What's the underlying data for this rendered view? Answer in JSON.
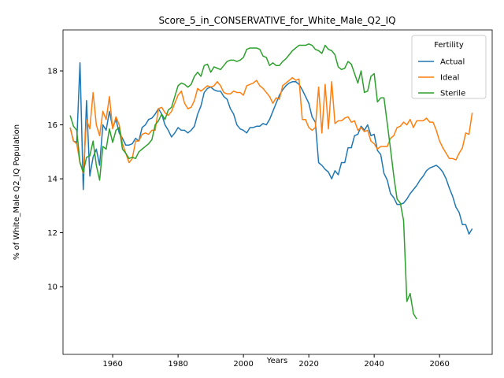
{
  "chart_data": {
    "type": "line",
    "title": "Score_5_in_CONSERVATIVE_for_White_Male_Q2_IQ",
    "x_label": "Years",
    "y_label": "% of White_Male Q2_IQ Population",
    "legend_title": "Fertility",
    "legend_loc": "upper right",
    "x": [
      1947,
      1948,
      1949,
      1950,
      1951,
      1952,
      1953,
      1954,
      1955,
      1956,
      1957,
      1958,
      1959,
      1960,
      1961,
      1962,
      1963,
      1964,
      1965,
      1966,
      1967,
      1968,
      1969,
      1970,
      1971,
      1972,
      1973,
      1974,
      1975,
      1976,
      1977,
      1978,
      1979,
      1980,
      1981,
      1982,
      1983,
      1984,
      1985,
      1986,
      1987,
      1988,
      1989,
      1990,
      1991,
      1992,
      1993,
      1994,
      1995,
      1996,
      1997,
      1998,
      1999,
      2000,
      2001,
      2002,
      2003,
      2004,
      2005,
      2006,
      2007,
      2008,
      2009,
      2010,
      2011,
      2012,
      2013,
      2014,
      2015,
      2016,
      2017,
      2018,
      2019,
      2020,
      2021,
      2022,
      2023,
      2024,
      2025,
      2026,
      2027,
      2028,
      2029,
      2030,
      2031,
      2032,
      2033,
      2034,
      2035,
      2036,
      2037,
      2038,
      2039,
      2040,
      2041,
      2042,
      2043,
      2044,
      2045,
      2046,
      2047,
      2048,
      2049,
      2050,
      2051,
      2052,
      2053,
      2054,
      2055,
      2056,
      2057,
      2058,
      2059,
      2060,
      2061,
      2062,
      2063,
      2064,
      2065,
      2066,
      2067,
      2068,
      2069,
      2070
    ],
    "series": [
      {
        "name": "Actual",
        "color": "#1f77b4",
        "values": [
          15.9,
          15.4,
          15.35,
          18.3,
          13.6,
          16.9,
          14.1,
          14.8,
          15.1,
          14.5,
          16.0,
          15.8,
          16.5,
          15.9,
          16.2,
          15.7,
          15.5,
          15.25,
          15.25,
          15.3,
          15.5,
          15.4,
          15.9,
          16.0,
          16.2,
          16.25,
          16.4,
          16.6,
          16.4,
          16.0,
          15.8,
          15.55,
          15.7,
          15.9,
          15.8,
          15.8,
          15.7,
          15.8,
          15.95,
          16.4,
          16.7,
          17.2,
          17.35,
          17.4,
          17.3,
          17.25,
          17.25,
          17.05,
          16.95,
          16.6,
          16.4,
          16.0,
          15.85,
          15.8,
          15.7,
          15.9,
          15.9,
          15.95,
          15.95,
          16.05,
          16.0,
          16.2,
          16.5,
          16.8,
          17.1,
          17.3,
          17.45,
          17.55,
          17.6,
          17.6,
          17.5,
          17.3,
          17.05,
          16.8,
          16.3,
          16.1,
          14.6,
          14.5,
          14.35,
          14.25,
          14.0,
          14.3,
          14.15,
          14.6,
          14.6,
          15.15,
          15.15,
          15.6,
          15.65,
          15.95,
          15.8,
          16.0,
          15.6,
          15.65,
          15.05,
          14.9,
          14.2,
          13.95,
          13.45,
          13.3,
          13.05,
          13.05,
          13.1,
          13.25,
          13.45,
          13.6,
          13.75,
          13.95,
          14.1,
          14.3,
          14.4,
          14.45,
          14.5,
          14.4,
          14.25,
          14.0,
          13.65,
          13.35,
          12.95,
          12.75,
          12.3,
          12.3,
          11.95,
          12.15
        ]
      },
      {
        "name": "Ideal",
        "color": "#ff7f0e",
        "values": [
          15.9,
          15.4,
          15.3,
          14.6,
          14.2,
          16.2,
          15.85,
          17.2,
          16.0,
          15.6,
          16.5,
          16.2,
          17.05,
          15.85,
          16.3,
          16.0,
          15.3,
          14.95,
          14.6,
          14.75,
          15.4,
          15.4,
          15.65,
          15.7,
          15.65,
          15.8,
          15.8,
          16.6,
          16.65,
          16.45,
          16.35,
          16.5,
          16.8,
          17.1,
          17.25,
          16.8,
          16.6,
          16.65,
          16.9,
          17.35,
          17.25,
          17.35,
          17.45,
          17.4,
          17.45,
          17.6,
          17.45,
          17.2,
          17.15,
          17.15,
          17.25,
          17.2,
          17.2,
          17.1,
          17.45,
          17.5,
          17.55,
          17.65,
          17.45,
          17.35,
          17.2,
          17.05,
          16.8,
          17.0,
          16.95,
          17.45,
          17.55,
          17.65,
          17.75,
          17.65,
          17.7,
          16.2,
          16.2,
          15.9,
          15.8,
          15.9,
          17.4,
          15.7,
          17.5,
          15.85,
          17.6,
          16.05,
          16.15,
          16.15,
          16.25,
          16.3,
          16.1,
          16.15,
          15.8,
          15.9,
          15.75,
          15.8,
          15.4,
          15.3,
          15.1,
          15.2,
          15.2,
          15.2,
          15.5,
          15.6,
          15.9,
          15.95,
          16.1,
          16.0,
          16.2,
          15.9,
          16.15,
          16.15,
          16.15,
          16.25,
          16.1,
          16.1,
          15.8,
          15.4,
          15.15,
          14.95,
          14.75,
          14.75,
          14.7,
          14.95,
          15.15,
          15.7,
          15.65,
          16.45
        ]
      },
      {
        "name": "Sterile",
        "color": "#2ca02c",
        "values": [
          16.35,
          15.95,
          15.8,
          14.6,
          14.25,
          14.8,
          14.85,
          15.4,
          14.5,
          13.95,
          15.2,
          15.1,
          15.85,
          15.35,
          15.8,
          15.9,
          15.1,
          14.95,
          14.75,
          14.8,
          14.75,
          15.0,
          15.1,
          15.2,
          15.3,
          15.45,
          16.0,
          16.15,
          16.4,
          16.2,
          16.55,
          16.65,
          17.05,
          17.45,
          17.55,
          17.5,
          17.4,
          17.5,
          17.8,
          17.95,
          17.8,
          18.2,
          18.25,
          17.95,
          18.15,
          18.1,
          18.05,
          18.2,
          18.35,
          18.4,
          18.4,
          18.35,
          18.4,
          18.5,
          18.8,
          18.85,
          18.85,
          18.85,
          18.8,
          18.55,
          18.5,
          18.2,
          18.3,
          18.2,
          18.2,
          18.35,
          18.45,
          18.6,
          18.75,
          18.85,
          18.95,
          18.95,
          18.95,
          19.0,
          18.95,
          18.8,
          18.75,
          18.65,
          18.95,
          18.8,
          18.75,
          18.6,
          18.15,
          18.05,
          18.1,
          18.35,
          18.25,
          17.9,
          17.55,
          18.0,
          17.2,
          17.25,
          17.8,
          17.9,
          16.85,
          17.0,
          17.0,
          16.05,
          15.1,
          14.1,
          13.25,
          13.1,
          12.45,
          9.45,
          9.75,
          9.0,
          8.8,
          null,
          null,
          null,
          null,
          null,
          null,
          null,
          null,
          null,
          null,
          null,
          null,
          null,
          null,
          null,
          null,
          null
        ]
      }
    ],
    "xlim": [
      1944.8,
      2076.1
    ],
    "ylim": [
      7.49,
      19.52
    ],
    "xticks": [
      1960,
      1980,
      2000,
      2020,
      2040,
      2060
    ],
    "yticks": [
      10,
      12,
      14,
      16,
      18
    ]
  }
}
